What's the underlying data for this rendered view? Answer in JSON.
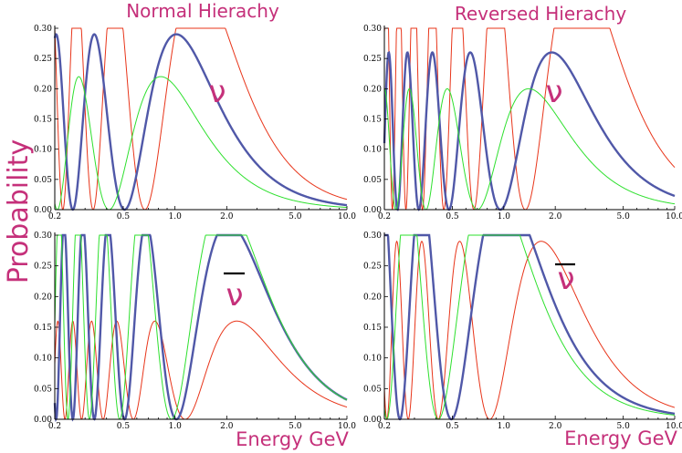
{
  "figure": {
    "titles": [
      "Normal Hierachy",
      "Reversed Hierachy"
    ],
    "ylabel": "Probability",
    "xlabel": "Energy GeV"
  },
  "colors": {
    "accent": "#c5307a",
    "red": "#e8351a",
    "green": "#2ee02e",
    "blue": "#5058a8"
  },
  "chart_data": [
    {
      "type": "line",
      "id": "normal-nu",
      "particle_label": "ν",
      "bar": false,
      "x_scale": "log",
      "xlim": [
        0.2,
        10.0
      ],
      "ylim": [
        0,
        0.3
      ],
      "xticks": [
        "0.2",
        "0.5",
        "1.0",
        "2.0",
        "5.0",
        "10.0"
      ],
      "yticks": [
        "0.00",
        "0.05",
        "0.10",
        "0.15",
        "0.20",
        "0.25",
        "0.30"
      ],
      "series": [
        {
          "color": "red",
          "amp": 0.39,
          "k": 2.1,
          "stroke_w": 1.0
        },
        {
          "color": "blue",
          "amp": 0.29,
          "k": 1.6,
          "stroke_w": 2.4
        },
        {
          "color": "green",
          "amp": 0.22,
          "k": 1.3,
          "stroke_w": 1.0
        }
      ]
    },
    {
      "type": "line",
      "id": "reversed-nu",
      "particle_label": "ν",
      "bar": false,
      "x_scale": "log",
      "xlim": [
        0.2,
        10.0
      ],
      "ylim": [
        0,
        0.3
      ],
      "xticks": [
        "0.2",
        "0.5",
        "1.0",
        "2.0",
        "5.0",
        "10.0"
      ],
      "yticks": [
        "0.00",
        "0.05",
        "0.10",
        "0.15",
        "0.20",
        "0.25",
        "0.30"
      ],
      "series": [
        {
          "color": "red",
          "amp": 0.42,
          "k": 4.2,
          "stroke_w": 1.0
        },
        {
          "color": "blue",
          "amp": 0.26,
          "k": 3.0,
          "stroke_w": 2.4
        },
        {
          "color": "green",
          "amp": 0.2,
          "k": 2.2,
          "stroke_w": 1.0
        }
      ]
    },
    {
      "type": "line",
      "id": "normal-nubar",
      "particle_label": "ν",
      "bar": true,
      "x_scale": "log",
      "xlim": [
        0.2,
        10.0
      ],
      "ylim": [
        0,
        0.3
      ],
      "xticks": [
        "0.2",
        "0.5",
        "1.0",
        "2.0",
        "5.0",
        "10.0"
      ],
      "yticks": [
        "0.00",
        "0.05",
        "0.10",
        "0.15",
        "0.20",
        "0.25",
        "0.30"
      ],
      "series": [
        {
          "color": "red",
          "amp": 0.16,
          "k": 3.6,
          "stroke_w": 1.0
        },
        {
          "color": "blue",
          "amp": 0.32,
          "k": 3.2,
          "stroke_w": 2.4
        },
        {
          "color": "green",
          "amp": 0.36,
          "k": 3.0,
          "stroke_w": 1.0
        }
      ]
    },
    {
      "type": "line",
      "id": "reversed-nubar",
      "particle_label": "ν",
      "bar": true,
      "x_scale": "log",
      "xlim": [
        0.2,
        10.0
      ],
      "ylim": [
        0,
        0.3
      ],
      "xticks": [
        "0.2",
        "0.5",
        "1.0",
        "2.0",
        "5.0",
        "10.0"
      ],
      "yticks": [
        "0.00",
        "0.05",
        "0.10",
        "0.15",
        "0.20",
        "0.25",
        "0.30"
      ],
      "series": [
        {
          "color": "red",
          "amp": 0.29,
          "k": 2.6,
          "stroke_w": 1.0
        },
        {
          "color": "blue",
          "amp": 0.38,
          "k": 1.55,
          "stroke_w": 2.4
        },
        {
          "color": "green",
          "amp": 0.4,
          "k": 1.3,
          "stroke_w": 1.0
        }
      ]
    }
  ]
}
